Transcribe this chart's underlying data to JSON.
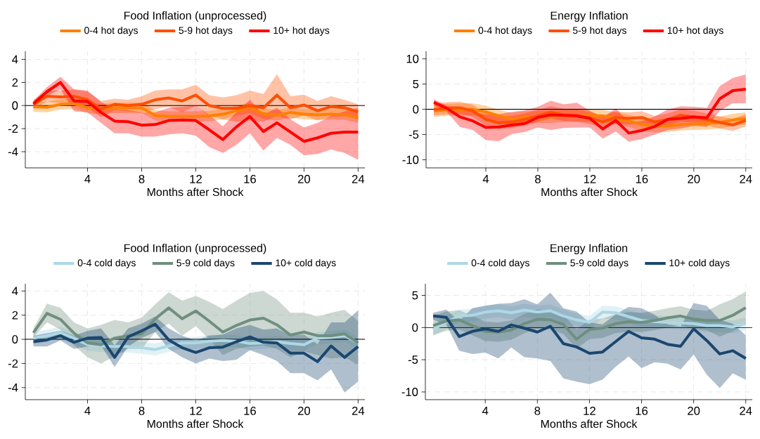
{
  "chart_data": [
    {
      "type": "line",
      "title": "Food Inflation (unprocessed)",
      "xlabel": "Months after Shock",
      "x": [
        0,
        1,
        2,
        3,
        4,
        5,
        6,
        7,
        8,
        9,
        10,
        11,
        12,
        13,
        14,
        15,
        16,
        17,
        18,
        19,
        20,
        21,
        22,
        23,
        24
      ],
      "xlim": [
        -0.6,
        24.5
      ],
      "xticks": [
        4,
        8,
        12,
        16,
        20,
        24
      ],
      "ylim": [
        -5.4,
        4.7
      ],
      "yticks": [
        -4,
        -2,
        0,
        2,
        4
      ],
      "grid": true,
      "legend": "top",
      "ref_lines": [
        {
          "axis": "y",
          "value": 0,
          "color": "#000000"
        }
      ],
      "series": [
        {
          "name": "0-4 hot days",
          "color": "#ff8000",
          "values": [
            -0.1,
            -0.15,
            0.1,
            0.15,
            -0.2,
            -0.3,
            -0.2,
            -0.2,
            -0.2,
            -0.85,
            -0.95,
            -0.95,
            -0.95,
            -0.9,
            -0.75,
            -0.45,
            -0.2,
            -0.7,
            -0.85,
            -0.6,
            -0.75,
            -0.8,
            -0.75,
            -0.8,
            -1.05
          ],
          "upper": [
            0.35,
            0.3,
            0.55,
            0.6,
            0.25,
            0.15,
            0.25,
            0.25,
            0.25,
            -0.4,
            -0.5,
            -0.5,
            -0.5,
            -0.45,
            -0.3,
            0.0,
            0.25,
            -0.25,
            -0.4,
            -0.15,
            -0.3,
            -0.35,
            -0.3,
            -0.35,
            -0.6
          ],
          "lower": [
            -0.55,
            -0.6,
            -0.35,
            -0.3,
            -0.65,
            -0.75,
            -0.65,
            -0.65,
            -0.65,
            -1.3,
            -1.4,
            -1.4,
            -1.4,
            -1.35,
            -1.2,
            -0.9,
            -0.65,
            -1.15,
            -1.3,
            -1.05,
            -1.2,
            -1.25,
            -1.2,
            -1.25,
            -1.5
          ]
        },
        {
          "name": "5-9 hot days",
          "color": "#ff4f00",
          "values": [
            0.1,
            0.8,
            0.75,
            0.8,
            0.5,
            -0.3,
            0.1,
            0.0,
            0.1,
            0.5,
            0.65,
            0.4,
            0.9,
            0.0,
            -0.25,
            -0.25,
            0.0,
            -0.2,
            0.9,
            -0.2,
            0.05,
            -0.45,
            -0.1,
            -0.2,
            -0.55
          ],
          "upper": [
            0.5,
            1.3,
            1.3,
            1.4,
            1.2,
            0.4,
            0.6,
            0.5,
            0.8,
            1.3,
            1.4,
            1.4,
            1.8,
            0.9,
            0.7,
            0.9,
            1.3,
            1.0,
            2.7,
            0.8,
            0.95,
            0.4,
            0.8,
            0.5,
            0.1
          ],
          "lower": [
            -0.3,
            0.3,
            0.2,
            0.2,
            -0.2,
            -1.0,
            -0.4,
            -0.5,
            -0.6,
            -0.3,
            -0.1,
            -0.6,
            0.0,
            -0.9,
            -1.2,
            -1.4,
            -1.3,
            -1.4,
            -0.9,
            -1.2,
            -0.85,
            -1.3,
            -1.0,
            -0.9,
            -1.2
          ]
        },
        {
          "name": "10+ hot days",
          "color": "#ff0000",
          "values": [
            0.15,
            1.2,
            2.0,
            0.4,
            0.35,
            -0.6,
            -1.35,
            -1.4,
            -1.7,
            -1.65,
            -1.3,
            -1.25,
            -1.3,
            -2.1,
            -2.95,
            -1.85,
            -0.95,
            -2.25,
            -1.5,
            -2.3,
            -3.1,
            -2.8,
            -2.4,
            -2.3,
            -2.3
          ],
          "upper": [
            0.4,
            1.6,
            2.5,
            1.4,
            1.3,
            0.3,
            -0.3,
            -0.4,
            -0.6,
            -0.6,
            -0.2,
            -0.1,
            0.0,
            -0.8,
            -1.8,
            -0.6,
            0.5,
            -0.8,
            -0.2,
            -1.2,
            -1.9,
            -1.5,
            -0.9,
            -0.5,
            -0.2
          ],
          "lower": [
            -0.1,
            0.8,
            1.4,
            -0.5,
            -0.6,
            -1.5,
            -2.4,
            -2.4,
            -2.7,
            -2.7,
            -2.5,
            -2.4,
            -2.6,
            -3.6,
            -4.1,
            -3.4,
            -2.4,
            -3.9,
            -2.8,
            -3.4,
            -4.3,
            -4.2,
            -3.8,
            -4.1,
            -4.7
          ]
        }
      ]
    },
    {
      "type": "line",
      "title": "Energy Inflation",
      "xlabel": "Months after Shock",
      "x": [
        0,
        1,
        2,
        3,
        4,
        5,
        6,
        7,
        8,
        9,
        10,
        11,
        12,
        13,
        14,
        15,
        16,
        17,
        18,
        19,
        20,
        21,
        22,
        23,
        24
      ],
      "xlim": [
        -0.6,
        24.5
      ],
      "xticks": [
        4,
        8,
        12,
        16,
        20,
        24
      ],
      "ylim": [
        -11.6,
        11.5
      ],
      "yticks": [
        -10,
        -5,
        0,
        5,
        10
      ],
      "grid": true,
      "legend": "top",
      "ref_lines": [
        {
          "axis": "y",
          "value": 0,
          "color": "#000000"
        }
      ],
      "series": [
        {
          "name": "0-4 hot days",
          "color": "#ff8000",
          "values": [
            -0.3,
            -0.1,
            0.0,
            0.0,
            -0.5,
            -1.3,
            -1.9,
            -1.6,
            -1.5,
            -1.5,
            -1.3,
            -1.3,
            -1.2,
            -1.3,
            -1.8,
            -2.3,
            -3.0,
            -3.4,
            -3.3,
            -3.0,
            -2.9,
            -2.8,
            -2.6,
            -2.1,
            -1.8
          ],
          "upper": [
            0.9,
            1.1,
            1.2,
            1.2,
            0.7,
            -0.1,
            -0.7,
            -0.4,
            -0.3,
            -0.3,
            -0.1,
            -0.1,
            0.0,
            -0.1,
            -0.6,
            -1.1,
            -1.8,
            -2.2,
            -2.1,
            -1.8,
            -1.7,
            -1.6,
            -1.4,
            -0.9,
            -0.6
          ],
          "lower": [
            -1.5,
            -1.3,
            -1.2,
            -1.2,
            -1.7,
            -2.5,
            -3.1,
            -2.8,
            -2.7,
            -2.7,
            -2.5,
            -2.5,
            -2.4,
            -2.5,
            -3.0,
            -3.5,
            -4.2,
            -4.6,
            -4.5,
            -4.2,
            -4.1,
            -4.0,
            -3.8,
            -3.3,
            -3.0
          ]
        },
        {
          "name": "5-9 hot days",
          "color": "#ff4f00",
          "values": [
            0.0,
            0.2,
            0.3,
            -0.3,
            -2.0,
            -2.7,
            -2.5,
            -2.0,
            -1.3,
            -0.6,
            -1.1,
            -1.2,
            -1.7,
            -2.5,
            -1.6,
            -1.8,
            -1.6,
            -2.5,
            -2.0,
            -1.2,
            -1.5,
            -2.0,
            -2.6,
            -3.1,
            -2.2
          ],
          "upper": [
            1.2,
            1.4,
            1.5,
            0.9,
            -0.8,
            -1.5,
            -1.3,
            -0.8,
            -0.1,
            0.6,
            0.1,
            0.0,
            -0.5,
            -1.3,
            -0.4,
            -0.6,
            -0.4,
            -1.3,
            -0.8,
            0.0,
            -0.3,
            -0.8,
            -1.4,
            -1.9,
            -1.0
          ],
          "lower": [
            -1.2,
            -1.0,
            -0.9,
            -1.5,
            -3.2,
            -3.9,
            -3.7,
            -3.2,
            -2.5,
            -1.8,
            -2.3,
            -2.4,
            -2.9,
            -3.7,
            -2.8,
            -3.0,
            -2.8,
            -3.7,
            -3.2,
            -2.4,
            -2.7,
            -3.2,
            -3.8,
            -4.3,
            -3.4
          ]
        },
        {
          "name": "10+ hot days",
          "color": "#ff0000",
          "values": [
            1.4,
            0.2,
            -1.5,
            -2.3,
            -3.6,
            -3.5,
            -3.1,
            -2.8,
            -1.6,
            -1.1,
            -1.2,
            -1.3,
            -1.8,
            -3.9,
            -2.2,
            -4.7,
            -4.2,
            -3.4,
            -2.0,
            -1.8,
            -1.5,
            -1.7,
            2.1,
            3.7,
            4.0
          ],
          "upper": [
            2.0,
            0.7,
            0.5,
            -0.5,
            -1.0,
            -1.0,
            -0.5,
            -0.2,
            0.5,
            1.7,
            1.0,
            1.3,
            -0.3,
            -1.6,
            0.2,
            -2.6,
            -2.3,
            -1.4,
            0.0,
            0.6,
            0.5,
            0.3,
            4.6,
            6.2,
            6.9
          ],
          "lower": [
            0.8,
            -0.5,
            -3.5,
            -4.1,
            -6.1,
            -6.3,
            -4.9,
            -4.5,
            -3.6,
            -4.1,
            -3.7,
            -3.6,
            -3.6,
            -5.8,
            -4.4,
            -6.4,
            -5.9,
            -5.0,
            -4.1,
            -3.8,
            -3.3,
            -3.5,
            -0.3,
            1.2,
            1.2
          ]
        }
      ]
    },
    {
      "type": "line",
      "title": "Food Inflation (unprocessed)",
      "xlabel": "Months after Shock",
      "x": [
        0,
        1,
        2,
        3,
        4,
        5,
        6,
        7,
        8,
        9,
        10,
        11,
        12,
        13,
        14,
        15,
        16,
        17,
        18,
        19,
        20,
        21,
        22,
        23,
        24
      ],
      "xlim": [
        -0.6,
        24.5
      ],
      "xticks": [
        4,
        8,
        12,
        16,
        20,
        24
      ],
      "ylim": [
        -5.0,
        4.6
      ],
      "yticks": [
        -4,
        -2,
        0,
        2,
        4
      ],
      "grid": true,
      "legend": "top",
      "ref_lines": [
        {
          "axis": "y",
          "value": 0,
          "color": "#000000"
        }
      ],
      "series": [
        {
          "name": "0-4 cold days",
          "color": "#add8e6",
          "values": [
            0.1,
            0.3,
            0.55,
            0.1,
            -0.45,
            -0.55,
            -0.6,
            -0.6,
            -0.7,
            -0.85,
            -0.55,
            -0.3,
            -0.3,
            -0.15,
            -0.1,
            -0.15,
            -0.35,
            -0.3,
            -0.2,
            -0.35,
            -0.45,
            0.1,
            0.15,
            0.3,
            -0.3
          ],
          "upper": [
            0.6,
            0.8,
            1.05,
            0.6,
            0.05,
            -0.05,
            -0.1,
            -0.1,
            -0.2,
            -0.35,
            -0.05,
            0.2,
            0.2,
            0.35,
            0.4,
            0.35,
            0.15,
            0.2,
            0.3,
            0.15,
            0.05,
            0.6,
            0.65,
            0.8,
            0.2
          ],
          "lower": [
            -0.4,
            -0.2,
            0.05,
            -0.4,
            -0.95,
            -1.05,
            -1.1,
            -1.1,
            -1.2,
            -1.35,
            -1.05,
            -0.8,
            -0.8,
            -0.65,
            -0.6,
            -0.65,
            -0.85,
            -0.8,
            -0.7,
            -0.85,
            -0.95,
            -0.4,
            -0.35,
            -0.2,
            -0.8
          ]
        },
        {
          "name": "5-9 cold days",
          "color": "#6f8f7f",
          "values": [
            0.55,
            2.15,
            1.65,
            0.5,
            -0.3,
            -0.45,
            0.1,
            0.3,
            0.45,
            1.7,
            2.6,
            1.7,
            2.35,
            1.5,
            0.6,
            1.15,
            1.6,
            1.75,
            1.2,
            0.35,
            0.6,
            0.3,
            0.3,
            0.45,
            -0.3
          ],
          "upper": [
            0.9,
            2.95,
            2.6,
            1.4,
            0.9,
            1.2,
            1.6,
            1.4,
            1.8,
            2.9,
            3.9,
            3.2,
            3.6,
            3.1,
            2.5,
            3.2,
            3.85,
            4.0,
            3.3,
            2.2,
            2.2,
            1.9,
            2.2,
            2.45,
            1.5
          ],
          "lower": [
            0.2,
            1.4,
            0.8,
            -0.5,
            -1.5,
            -2.0,
            -1.4,
            -0.8,
            -0.8,
            0.6,
            1.3,
            0.3,
            1.1,
            0.0,
            -1.3,
            -0.8,
            -0.6,
            -0.5,
            -0.8,
            -1.5,
            -1.0,
            -1.3,
            -1.6,
            -1.5,
            -2.1
          ]
        },
        {
          "name": "10+ cold days",
          "color": "#1a476f",
          "values": [
            -0.2,
            -0.05,
            0.3,
            -0.25,
            0.1,
            0.15,
            -1.5,
            0.2,
            0.7,
            1.25,
            -0.05,
            -0.7,
            -1.1,
            -0.7,
            -0.65,
            -0.2,
            0.2,
            -0.25,
            -0.3,
            -1.15,
            -1.15,
            -1.85,
            -0.55,
            -1.5,
            -0.6
          ],
          "upper": [
            0.3,
            0.5,
            0.7,
            0.3,
            0.7,
            0.9,
            -0.5,
            0.9,
            1.3,
            1.9,
            0.9,
            0.3,
            -0.1,
            0.3,
            0.4,
            0.9,
            1.2,
            0.8,
            0.9,
            0.3,
            0.4,
            -0.4,
            1.4,
            1.4,
            2.4
          ],
          "lower": [
            -0.6,
            -0.6,
            -0.1,
            -0.8,
            -0.6,
            -0.5,
            -2.3,
            -0.6,
            0.1,
            0.6,
            -0.8,
            -1.5,
            -2.0,
            -1.6,
            -1.8,
            -1.7,
            -0.9,
            -1.3,
            -1.8,
            -2.8,
            -2.8,
            -3.4,
            -2.5,
            -4.4,
            -3.5
          ]
        }
      ]
    },
    {
      "type": "line",
      "title": "Energy Inflation",
      "xlabel": "Months after Shock",
      "x": [
        0,
        1,
        2,
        3,
        4,
        5,
        6,
        7,
        8,
        9,
        10,
        11,
        12,
        13,
        14,
        15,
        16,
        17,
        18,
        19,
        20,
        21,
        22,
        23,
        24
      ],
      "xlim": [
        -0.6,
        24.5
      ],
      "xticks": [
        4,
        8,
        12,
        16,
        20,
        24
      ],
      "ylim": [
        -11.2,
        6.8
      ],
      "yticks": [
        -10,
        -5,
        0,
        5
      ],
      "grid": true,
      "legend": "top",
      "ref_lines": [
        {
          "axis": "y",
          "value": 0,
          "color": "#000000"
        }
      ],
      "series": [
        {
          "name": "0-4 cold days",
          "color": "#add8e6",
          "values": [
            -0.3,
            0.8,
            1.8,
            1.9,
            2.4,
            2.6,
            2.3,
            2.7,
            2.4,
            2.6,
            1.8,
            1.2,
            0.8,
            2.4,
            2.3,
            1.7,
            1.1,
            0.9,
            0.8,
            0.7,
            0.6,
            0.3,
            0.3,
            0.1,
            0.6
          ],
          "upper": [
            0.7,
            1.8,
            2.8,
            2.9,
            3.4,
            3.6,
            3.3,
            3.7,
            3.4,
            3.6,
            2.8,
            2.2,
            1.8,
            3.4,
            3.3,
            2.7,
            2.1,
            1.9,
            1.8,
            1.7,
            1.6,
            1.3,
            1.3,
            1.1,
            1.6
          ],
          "lower": [
            -1.3,
            -0.2,
            0.8,
            0.9,
            1.4,
            1.6,
            1.3,
            1.7,
            1.4,
            1.6,
            0.8,
            0.2,
            -0.2,
            1.4,
            1.3,
            0.7,
            0.1,
            -0.1,
            -0.2,
            -0.3,
            -0.4,
            -0.7,
            -0.7,
            -0.9,
            -0.4
          ]
        },
        {
          "name": "5-9 cold days",
          "color": "#6f8f7f",
          "values": [
            0.3,
            1.0,
            1.2,
            0.3,
            -0.6,
            -0.7,
            -0.4,
            0.6,
            1.3,
            1.2,
            0.5,
            -1.8,
            -0.3,
            -0.1,
            0.6,
            0.9,
            0.8,
            1.1,
            1.5,
            1.8,
            1.3,
            1.1,
            1.1,
            1.9,
            3.1
          ],
          "upper": [
            1.8,
            2.5,
            2.7,
            1.8,
            0.9,
            0.8,
            1.1,
            2.1,
            2.8,
            2.7,
            2.0,
            -0.3,
            1.2,
            1.4,
            2.1,
            2.4,
            2.3,
            2.6,
            3.0,
            3.3,
            2.8,
            2.6,
            3.6,
            4.4,
            5.6
          ],
          "lower": [
            -1.2,
            -0.5,
            -0.3,
            -1.2,
            -2.1,
            -2.2,
            -1.9,
            -0.9,
            -0.2,
            -0.3,
            -1.0,
            -3.3,
            -1.8,
            -1.6,
            -0.9,
            -0.6,
            -0.7,
            -0.4,
            0.0,
            0.3,
            -0.2,
            -0.4,
            -1.4,
            -0.6,
            0.6
          ]
        },
        {
          "name": "10+ cold days",
          "color": "#1a476f",
          "values": [
            1.8,
            1.6,
            -1.4,
            -0.6,
            -0.2,
            -0.6,
            0.4,
            -0.1,
            -0.7,
            0.2,
            -2.5,
            -3.0,
            -4.0,
            -3.8,
            -2.2,
            -0.6,
            -1.6,
            -1.8,
            -2.6,
            -2.9,
            -0.2,
            -2.0,
            -4.1,
            -3.6,
            -4.8
          ],
          "upper": [
            2.3,
            2.8,
            1.0,
            3.0,
            3.4,
            3.7,
            3.8,
            4.4,
            3.6,
            5.4,
            3.0,
            2.5,
            0.8,
            0.5,
            2.0,
            3.2,
            3.0,
            2.0,
            0.5,
            0.2,
            3.8,
            3.4,
            1.2,
            0.6,
            -1.2
          ],
          "lower": [
            1.2,
            0.5,
            -3.6,
            -4.1,
            -3.9,
            -4.8,
            -3.1,
            -4.6,
            -4.8,
            -5.2,
            -7.9,
            -8.4,
            -8.8,
            -8.1,
            -6.1,
            -4.5,
            -6.3,
            -5.4,
            -5.6,
            -6.5,
            -4.2,
            -7.3,
            -9.4,
            -7.1,
            -8.1
          ]
        }
      ]
    }
  ]
}
